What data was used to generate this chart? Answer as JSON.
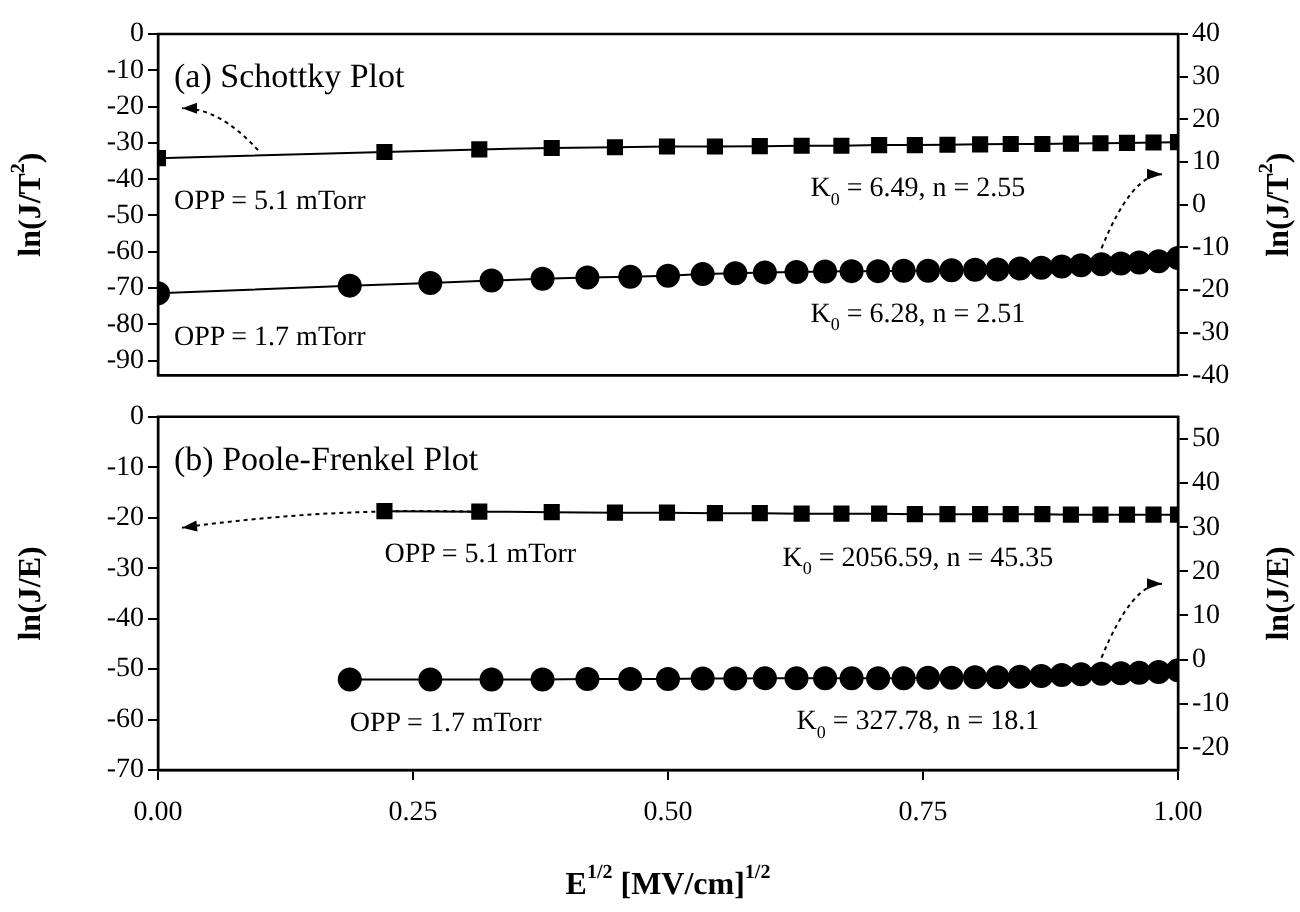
{
  "chart_data": [
    {
      "type": "line",
      "title": "(a) Schottky Plot",
      "ylabel": "ln(J/T$^{2}$)",
      "y2label": "ln(J/T$^{2}$)",
      "xlim": [
        0,
        1
      ],
      "ylim": [
        -94,
        0
      ],
      "yticks": [
        0,
        -10,
        -20,
        -30,
        -40,
        -50,
        -60,
        -70,
        -80,
        -90
      ],
      "y2lim": [
        -40,
        40
      ],
      "y2ticks": [
        40,
        30,
        20,
        10,
        0,
        -10,
        -20,
        -30,
        -40
      ],
      "tick_labels": "y",
      "grid": false,
      "legend": false,
      "line_style": "solid",
      "series": [
        {
          "name": "OPP = 5.1 mTorr",
          "color": "#000000",
          "marker": "square",
          "x": [
            0,
            0.222,
            0.315,
            0.386,
            0.448,
            0.499,
            0.546,
            0.59,
            0.631,
            0.67,
            0.707,
            0.742,
            0.774,
            0.806,
            0.836,
            0.867,
            0.895,
            0.924,
            0.95,
            0.976,
            1.0
          ],
          "values": [
            -34.2,
            -32.5,
            -31.8,
            -31.4,
            -31.2,
            -31.0,
            -31.0,
            -30.9,
            -30.8,
            -30.8,
            -30.6,
            -30.6,
            -30.5,
            -30.4,
            -30.3,
            -30.3,
            -30.2,
            -30.1,
            -30.0,
            -29.9,
            -29.8
          ]
        },
        {
          "name": "OPP = 1.7 mTorr",
          "color": "#000000",
          "marker": "circle",
          "axis": "y2",
          "x": [
            0,
            0.188,
            0.267,
            0.327,
            0.377,
            0.421,
            0.463,
            0.5,
            0.534,
            0.566,
            0.595,
            0.626,
            0.654,
            0.68,
            0.706,
            0.731,
            0.755,
            0.778,
            0.801,
            0.823,
            0.845,
            0.866,
            0.886,
            0.905,
            0.925,
            0.944,
            0.962,
            0.981,
            1.0
          ],
          "values": [
            -20.8,
            -19.0,
            -18.4,
            -17.8,
            -17.4,
            -17.1,
            -16.9,
            -16.7,
            -16.3,
            -16.1,
            -15.9,
            -15.8,
            -15.7,
            -15.6,
            -15.6,
            -15.5,
            -15.5,
            -15.4,
            -15.3,
            -15.2,
            -15.0,
            -14.8,
            -14.5,
            -14.2,
            -14.0,
            -13.8,
            -13.6,
            -13.3,
            -12.5
          ]
        }
      ],
      "annotations": [
        "K$_{0}$ = 6.49, n = 2.55",
        "K$_{0}$ = 6.28, n = 2.51"
      ]
    },
    {
      "type": "line",
      "title": "(b) Poole-Frenkel Plot",
      "xlabel": "E$^{1/2}$ [MV/cm]$^{1/2}$",
      "ylabel": "ln(J/E)",
      "y2label": "ln(J/E)",
      "xlim": [
        0,
        1
      ],
      "xticks": [
        {
          "value": 0,
          "label": "0.00"
        },
        {
          "value": 0.25,
          "label": "0.25"
        },
        {
          "value": 0.5,
          "label": "0.50"
        },
        {
          "value": 0.75,
          "label": "0.75"
        },
        {
          "value": 1,
          "label": "1.00"
        }
      ],
      "ylim": [
        -70,
        0
      ],
      "yticks": [
        0,
        -10,
        -20,
        -30,
        -40,
        -50,
        -60,
        -70
      ],
      "y2lim": [
        -25,
        55
      ],
      "y2ticks": [
        50,
        40,
        30,
        20,
        10,
        0,
        -10,
        -20
      ],
      "grid": false,
      "legend": false,
      "line_style": "solid",
      "series": [
        {
          "name": "OPP = 5.1 mTorr",
          "color": "#000000",
          "marker": "square",
          "x": [
            0.222,
            0.315,
            0.386,
            0.448,
            0.499,
            0.546,
            0.59,
            0.631,
            0.67,
            0.707,
            0.742,
            0.774,
            0.806,
            0.836,
            0.867,
            0.895,
            0.924,
            0.95,
            0.976,
            1.0
          ],
          "values": [
            -18.7,
            -18.8,
            -18.9,
            -19.0,
            -19.0,
            -19.1,
            -19.1,
            -19.2,
            -19.2,
            -19.2,
            -19.3,
            -19.3,
            -19.3,
            -19.3,
            -19.3,
            -19.4,
            -19.4,
            -19.4,
            -19.4,
            -19.4
          ]
        },
        {
          "name": "OPP = 1.7 mTorr",
          "color": "#000000",
          "marker": "circle",
          "axis": "y2",
          "x": [
            0.188,
            0.267,
            0.327,
            0.377,
            0.421,
            0.463,
            0.5,
            0.534,
            0.566,
            0.595,
            0.626,
            0.654,
            0.68,
            0.706,
            0.731,
            0.755,
            0.778,
            0.801,
            0.823,
            0.845,
            0.866,
            0.886,
            0.905,
            0.925,
            0.944,
            0.962,
            0.981,
            1.0
          ],
          "values": [
            -4.5,
            -4.5,
            -4.5,
            -4.5,
            -4.4,
            -4.4,
            -4.4,
            -4.3,
            -4.3,
            -4.2,
            -4.2,
            -4.2,
            -4.2,
            -4.2,
            -4.2,
            -4.1,
            -4.1,
            -4.0,
            -4.0,
            -3.9,
            -3.7,
            -3.5,
            -3.3,
            -3.2,
            -3.1,
            -3.0,
            -2.8,
            -2.4
          ]
        }
      ],
      "annotations": [
        "K$_{0}$ = 2056.59, n = 45.35",
        "K$_{0}$ = 327.78, n = 18.1"
      ]
    }
  ]
}
